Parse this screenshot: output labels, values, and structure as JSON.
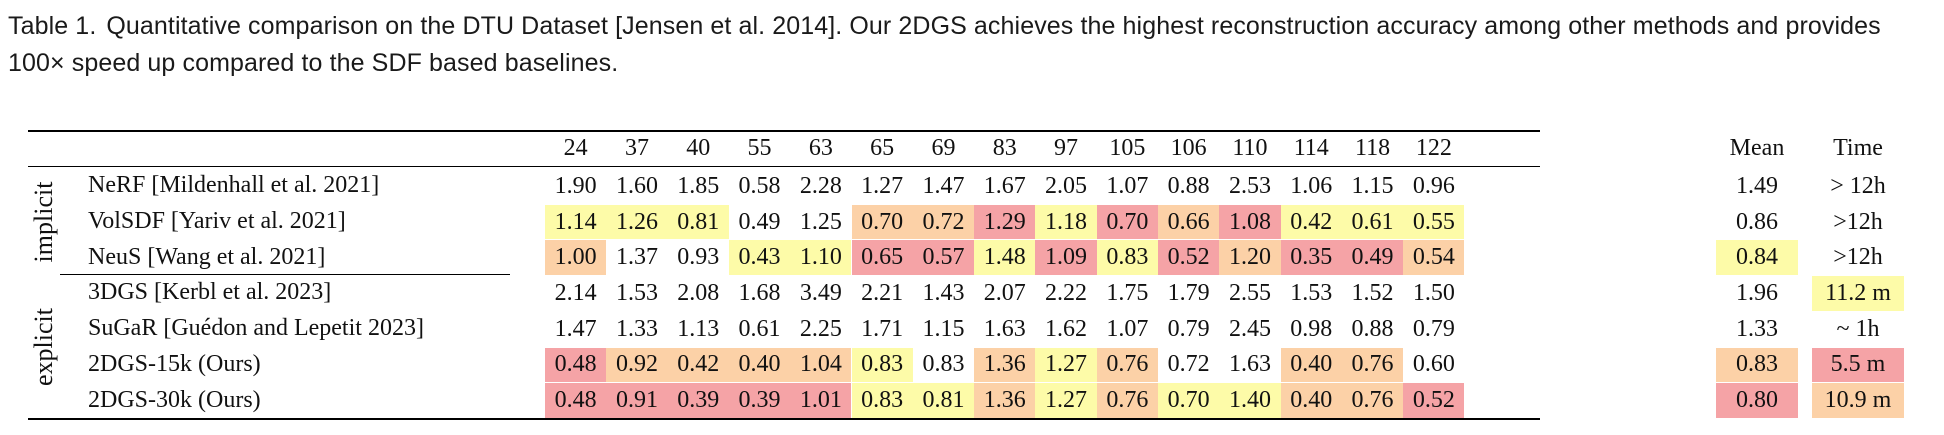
{
  "caption": {
    "label": "Table 1.",
    "text": "Quantitative comparison on the DTU Dataset [Jensen et al. 2014]. Our 2DGS achieves the highest reconstruction accuracy among other methods and provides 100× speed up compared to the SDF based baselines."
  },
  "colors": {
    "best": "#f5a3a6",
    "second": "#fcd1a7",
    "third": "#fdfba8",
    "none": "#ffffff"
  },
  "table": {
    "scan_headers": [
      "24",
      "37",
      "40",
      "55",
      "63",
      "65",
      "69",
      "83",
      "97",
      "105",
      "106",
      "110",
      "114",
      "118",
      "122"
    ],
    "mean_header": "Mean",
    "time_header": "Time",
    "groups": [
      {
        "label": "implicit",
        "rows": [
          0,
          1,
          2
        ]
      },
      {
        "label": "explicit",
        "rows": [
          3,
          4,
          5,
          6
        ]
      }
    ],
    "rows": [
      {
        "method": "NeRF [Mildenhall et al. 2021]",
        "values": [
          "1.90",
          "1.60",
          "1.85",
          "0.58",
          "2.28",
          "1.27",
          "1.47",
          "1.67",
          "2.05",
          "1.07",
          "0.88",
          "2.53",
          "1.06",
          "1.15",
          "0.96"
        ],
        "ranks": [
          0,
          0,
          0,
          0,
          0,
          0,
          0,
          0,
          0,
          0,
          0,
          0,
          0,
          0,
          0
        ],
        "mean": "1.49",
        "mean_rank": 0,
        "time": "> 12h",
        "time_rank": 0
      },
      {
        "method": "VolSDF [Yariv et al. 2021]",
        "values": [
          "1.14",
          "1.26",
          "0.81",
          "0.49",
          "1.25",
          "0.70",
          "0.72",
          "1.29",
          "1.18",
          "0.70",
          "0.66",
          "1.08",
          "0.42",
          "0.61",
          "0.55"
        ],
        "ranks": [
          3,
          3,
          3,
          0,
          0,
          2,
          2,
          1,
          3,
          1,
          2,
          1,
          3,
          3,
          3
        ],
        "mean": "0.86",
        "mean_rank": 0,
        "time": ">12h",
        "time_rank": 0
      },
      {
        "method": "NeuS [Wang et al. 2021]",
        "values": [
          "1.00",
          "1.37",
          "0.93",
          "0.43",
          "1.10",
          "0.65",
          "0.57",
          "1.48",
          "1.09",
          "0.83",
          "0.52",
          "1.20",
          "0.35",
          "0.49",
          "0.54"
        ],
        "ranks": [
          2,
          0,
          0,
          3,
          3,
          1,
          1,
          3,
          1,
          3,
          1,
          2,
          1,
          1,
          2
        ],
        "mean": "0.84",
        "mean_rank": 3,
        "time": ">12h",
        "time_rank": 0
      },
      {
        "method": "3DGS [Kerbl et al. 2023]",
        "values": [
          "2.14",
          "1.53",
          "2.08",
          "1.68",
          "3.49",
          "2.21",
          "1.43",
          "2.07",
          "2.22",
          "1.75",
          "1.79",
          "2.55",
          "1.53",
          "1.52",
          "1.50"
        ],
        "ranks": [
          0,
          0,
          0,
          0,
          0,
          0,
          0,
          0,
          0,
          0,
          0,
          0,
          0,
          0,
          0
        ],
        "mean": "1.96",
        "mean_rank": 0,
        "time": "11.2 m",
        "time_rank": 3
      },
      {
        "method": "SuGaR [Guédon and Lepetit 2023]",
        "values": [
          "1.47",
          "1.33",
          "1.13",
          "0.61",
          "2.25",
          "1.71",
          "1.15",
          "1.63",
          "1.62",
          "1.07",
          "0.79",
          "2.45",
          "0.98",
          "0.88",
          "0.79"
        ],
        "ranks": [
          0,
          0,
          0,
          0,
          0,
          0,
          0,
          0,
          0,
          0,
          0,
          0,
          0,
          0,
          0
        ],
        "mean": "1.33",
        "mean_rank": 0,
        "time": "~ 1h",
        "time_rank": 0
      },
      {
        "method": "2DGS-15k (Ours)",
        "values": [
          "0.48",
          "0.92",
          "0.42",
          "0.40",
          "1.04",
          "0.83",
          "0.83",
          "1.36",
          "1.27",
          "0.76",
          "0.72",
          "1.63",
          "0.40",
          "0.76",
          "0.60"
        ],
        "ranks": [
          1,
          2,
          2,
          2,
          2,
          3,
          0,
          2,
          3,
          2,
          0,
          0,
          2,
          2,
          0
        ],
        "mean": "0.83",
        "mean_rank": 2,
        "time": "5.5 m",
        "time_rank": 1
      },
      {
        "method": "2DGS-30k (Ours)",
        "values": [
          "0.48",
          "0.91",
          "0.39",
          "0.39",
          "1.01",
          "0.83",
          "0.81",
          "1.36",
          "1.27",
          "0.76",
          "0.70",
          "1.40",
          "0.40",
          "0.76",
          "0.52"
        ],
        "ranks": [
          1,
          1,
          1,
          1,
          1,
          3,
          3,
          2,
          3,
          2,
          3,
          3,
          2,
          2,
          1
        ],
        "mean": "0.80",
        "mean_rank": 1,
        "time": "10.9 m",
        "time_rank": 2
      }
    ]
  }
}
